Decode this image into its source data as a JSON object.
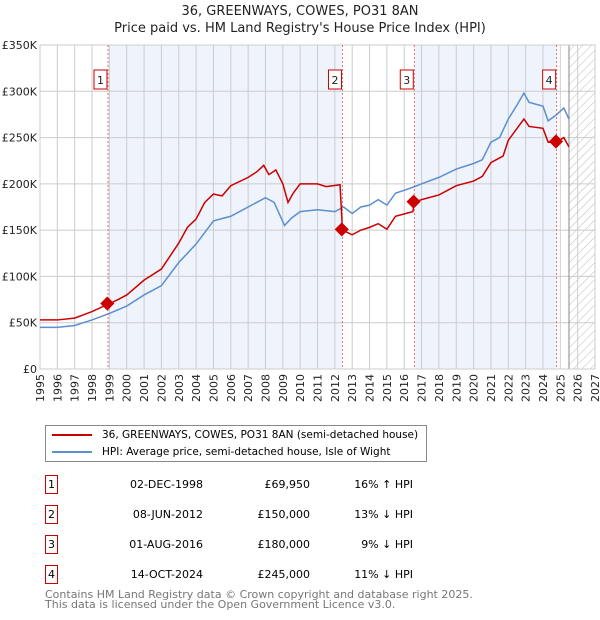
{
  "chart_data": {
    "type": "line",
    "title": "36, GREENWAYS, COWES, PO31 8AN",
    "subtitle": "Price paid vs. HM Land Registry's House Price Index (HPI)",
    "xlim": [
      1995,
      2027
    ],
    "ylim": [
      0,
      350000
    ],
    "x_ticks": [
      "1995",
      "1996",
      "1997",
      "1998",
      "1999",
      "2000",
      "2001",
      "2002",
      "2003",
      "2004",
      "2005",
      "2006",
      "2007",
      "2008",
      "2009",
      "2010",
      "2011",
      "2012",
      "2013",
      "2014",
      "2015",
      "2016",
      "2017",
      "2018",
      "2019",
      "2020",
      "2021",
      "2022",
      "2023",
      "2024",
      "2025",
      "2026",
      "2027"
    ],
    "y_ticks": [
      {
        "v": 0,
        "label": "£0"
      },
      {
        "v": 50000,
        "label": "£50K"
      },
      {
        "v": 100000,
        "label": "£100K"
      },
      {
        "v": 150000,
        "label": "£150K"
      },
      {
        "v": 200000,
        "label": "£200K"
      },
      {
        "v": 250000,
        "label": "£250K"
      },
      {
        "v": 300000,
        "label": "£300K"
      },
      {
        "v": 350000,
        "label": "£350K"
      }
    ],
    "grid": true,
    "data_end": 2025.5,
    "series": [
      {
        "name": "36, GREENWAYS, COWES, PO31 8AN (semi-detached house)",
        "color": "#cc0000",
        "x": [
          1995,
          1996,
          1997,
          1998,
          1998.92,
          1999.5,
          2000,
          2001,
          2002,
          2003,
          2003.5,
          2004,
          2004.5,
          2005,
          2005.5,
          2006,
          2007,
          2007.5,
          2007.9,
          2008.2,
          2008.6,
          2009,
          2009.3,
          2009.6,
          2010,
          2011,
          2011.5,
          2012.3,
          2012.44,
          2013,
          2013.5,
          2014,
          2014.5,
          2015,
          2015.5,
          2016.5,
          2016.58,
          2017,
          2018,
          2019,
          2020,
          2020.5,
          2021,
          2021.7,
          2022,
          2022.9,
          2023.2,
          2024,
          2024.3,
          2024.79,
          2025.2,
          2025.5
        ],
        "y": [
          53000,
          53000,
          55000,
          62000,
          69950,
          75000,
          80000,
          96000,
          108000,
          136000,
          153000,
          162000,
          180000,
          189000,
          187000,
          198000,
          207000,
          213000,
          220000,
          210000,
          215000,
          200000,
          180000,
          190000,
          200000,
          200000,
          197000,
          199000,
          150000,
          145000,
          150000,
          153000,
          157000,
          151000,
          165000,
          170000,
          180000,
          183000,
          188000,
          198000,
          203000,
          208000,
          223000,
          230000,
          247000,
          270000,
          262000,
          260000,
          245000,
          245000,
          250000,
          240000
        ]
      },
      {
        "name": "HPI: Average price, semi-detached house, Isle of Wight",
        "color": "#5b8fd0",
        "x": [
          1995,
          1996,
          1997,
          1998,
          1999,
          2000,
          2001,
          2002,
          2003,
          2004,
          2005,
          2006,
          2007,
          2008,
          2008.5,
          2009.1,
          2009.5,
          2010,
          2011,
          2012,
          2012.5,
          2013,
          2013.5,
          2014,
          2014.5,
          2015,
          2015.5,
          2016,
          2016.6,
          2017,
          2018,
          2019,
          2020,
          2020.5,
          2021,
          2021.5,
          2022,
          2022.5,
          2022.9,
          2023.2,
          2024,
          2024.3,
          2024.8,
          2025.2,
          2025.5
        ],
        "y": [
          45000,
          45000,
          47000,
          53000,
          60000,
          68000,
          80000,
          90000,
          115000,
          135000,
          160000,
          165000,
          175000,
          185000,
          180000,
          155000,
          163000,
          170000,
          172000,
          170000,
          175000,
          168000,
          175000,
          177000,
          183000,
          177000,
          190000,
          193000,
          197000,
          200000,
          207000,
          216000,
          222000,
          226000,
          245000,
          250000,
          270000,
          285000,
          298000,
          288000,
          284000,
          268000,
          275000,
          282000,
          270000
        ]
      }
    ],
    "sales": [
      {
        "n": "1",
        "x": 1998.92,
        "y": 69950
      },
      {
        "n": "2",
        "x": 2012.44,
        "y": 150000
      },
      {
        "n": "3",
        "x": 2016.58,
        "y": 180000
      },
      {
        "n": "4",
        "x": 2024.79,
        "y": 245000
      }
    ]
  },
  "legend": [
    "36, GREENWAYS, COWES, PO31 8AN (semi-detached house)",
    "HPI: Average price, semi-detached house, Isle of Wight"
  ],
  "table": [
    {
      "n": "1",
      "date": "02-DEC-1998",
      "price": "£69,950",
      "hpi": "16% ↑ HPI"
    },
    {
      "n": "2",
      "date": "08-JUN-2012",
      "price": "£150,000",
      "hpi": "13% ↓ HPI"
    },
    {
      "n": "3",
      "date": "01-AUG-2016",
      "price": "£180,000",
      "hpi": "9% ↓ HPI"
    },
    {
      "n": "4",
      "date": "14-OCT-2024",
      "price": "£245,000",
      "hpi": "11% ↓ HPI"
    }
  ],
  "footer": [
    "Contains HM Land Registry data © Crown copyright and database right 2025.",
    "This data is licensed under the Open Government Licence v3.0."
  ]
}
